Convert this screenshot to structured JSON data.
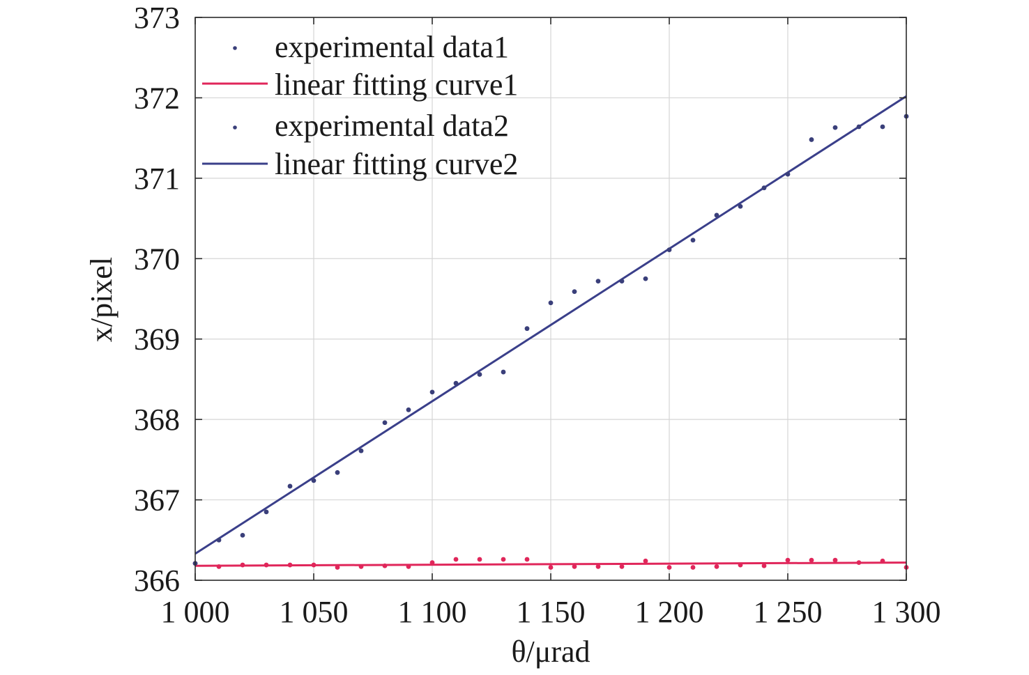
{
  "chart_data": {
    "type": "scatter",
    "xlabel": "θ/μrad",
    "ylabel": "x/pixel",
    "xlim": [
      1000,
      1300
    ],
    "ylim": [
      366,
      373
    ],
    "x_ticks": [
      1000,
      1050,
      1100,
      1150,
      1200,
      1250,
      1300
    ],
    "x_tick_labels": [
      "1 000",
      "1 050",
      "1 100",
      "1 150",
      "1 200",
      "1 250",
      "1 300"
    ],
    "y_ticks": [
      366,
      367,
      368,
      369,
      370,
      371,
      372,
      373
    ],
    "y_tick_labels": [
      "366",
      "367",
      "368",
      "369",
      "370",
      "371",
      "372",
      "373"
    ],
    "grid": true,
    "legend_position": "top-left",
    "legend_labels": [
      "experimental data1",
      "linear fitting curve1",
      "experimental data2",
      "linear fitting curve2"
    ],
    "series": [
      {
        "name": "experimental data1",
        "kind": "points",
        "color": "#e0265a",
        "x": [
          1000,
          1010,
          1020,
          1030,
          1040,
          1050,
          1060,
          1070,
          1080,
          1090,
          1100,
          1110,
          1120,
          1130,
          1140,
          1150,
          1160,
          1170,
          1180,
          1190,
          1200,
          1210,
          1220,
          1230,
          1240,
          1250,
          1260,
          1270,
          1280,
          1290,
          1300
        ],
        "y": [
          366.21,
          366.17,
          366.19,
          366.19,
          366.19,
          366.19,
          366.16,
          366.17,
          366.18,
          366.17,
          366.22,
          366.26,
          366.26,
          366.26,
          366.26,
          366.16,
          366.17,
          366.17,
          366.17,
          366.24,
          366.16,
          366.16,
          366.17,
          366.19,
          366.18,
          366.25,
          366.25,
          366.25,
          366.22,
          366.24,
          366.16
        ]
      },
      {
        "name": "linear fitting curve1",
        "kind": "line",
        "color": "#e0265a",
        "x": [
          1000,
          1300
        ],
        "y": [
          366.18,
          366.22
        ]
      },
      {
        "name": "experimental data2",
        "kind": "points",
        "color": "#3a3f7a",
        "x": [
          1000,
          1010,
          1020,
          1030,
          1040,
          1050,
          1060,
          1070,
          1080,
          1090,
          1100,
          1110,
          1120,
          1130,
          1140,
          1150,
          1160,
          1170,
          1180,
          1190,
          1200,
          1210,
          1220,
          1230,
          1240,
          1250,
          1260,
          1270,
          1280,
          1290,
          1300
        ],
        "y": [
          366.21,
          366.5,
          366.56,
          366.85,
          367.17,
          367.24,
          367.34,
          367.61,
          367.96,
          368.12,
          368.34,
          368.45,
          368.56,
          368.59,
          369.13,
          369.45,
          369.59,
          369.72,
          369.72,
          369.75,
          370.11,
          370.23,
          370.54,
          370.65,
          370.88,
          371.05,
          371.48,
          371.63,
          371.64,
          371.64,
          371.77
        ]
      },
      {
        "name": "linear fitting curve2",
        "kind": "line",
        "color": "#3a3f8a",
        "x": [
          1000,
          1300
        ],
        "y": [
          366.33,
          372.02
        ]
      }
    ]
  }
}
